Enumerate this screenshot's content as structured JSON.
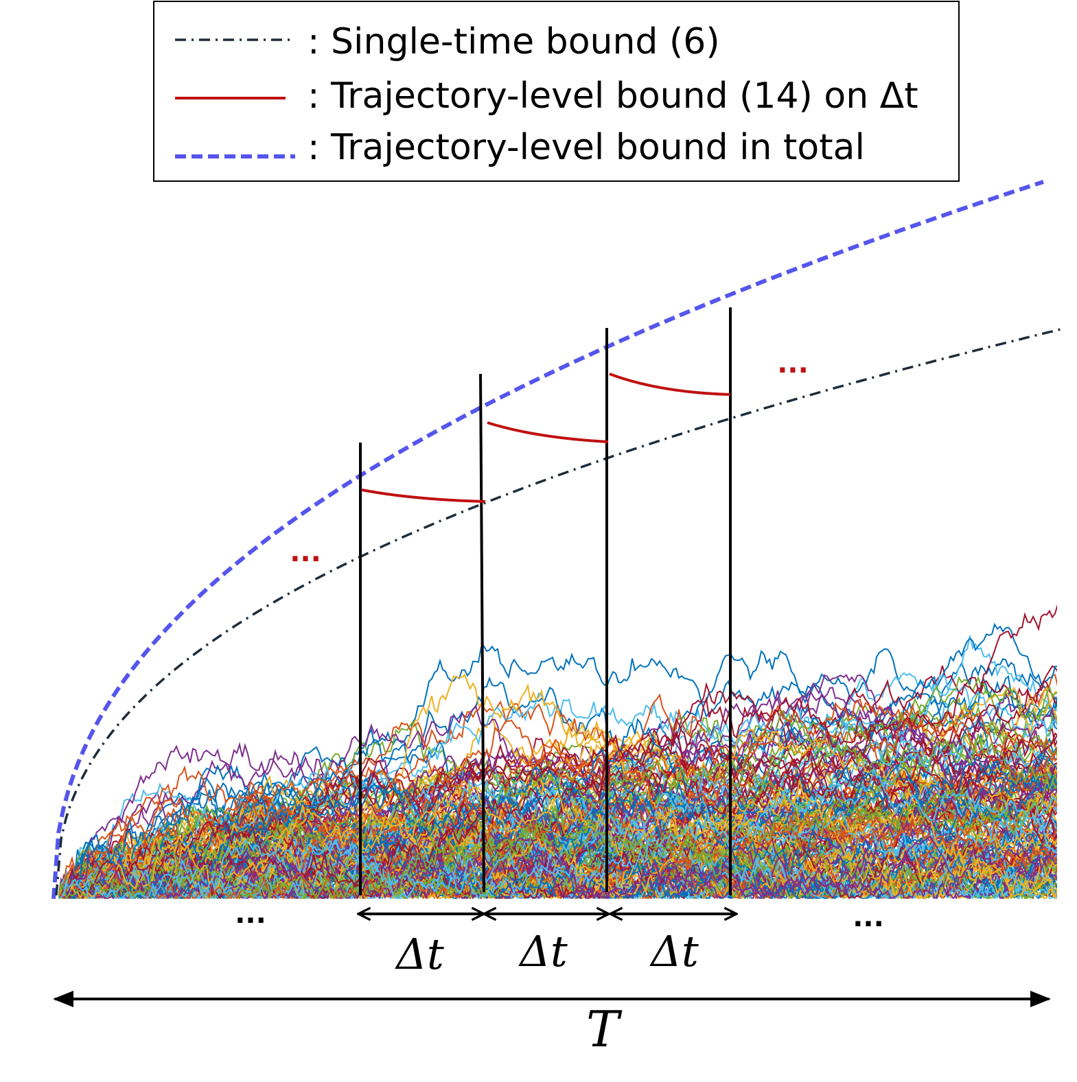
{
  "legend": {
    "items": [
      {
        "label": ": Single-time bound (6)"
      },
      {
        "label": ": Trajectory-level bound (14) on Δt"
      },
      {
        "label": ": Trajectory-level bound in total"
      }
    ]
  },
  "annotations": {
    "red_dots_left": "...",
    "red_dots_right": "...",
    "black_dots_left": "...",
    "black_dots_right": "...",
    "delta_labels": [
      "Δt",
      "Δt",
      "Δt"
    ],
    "total_label": "T"
  }
}
